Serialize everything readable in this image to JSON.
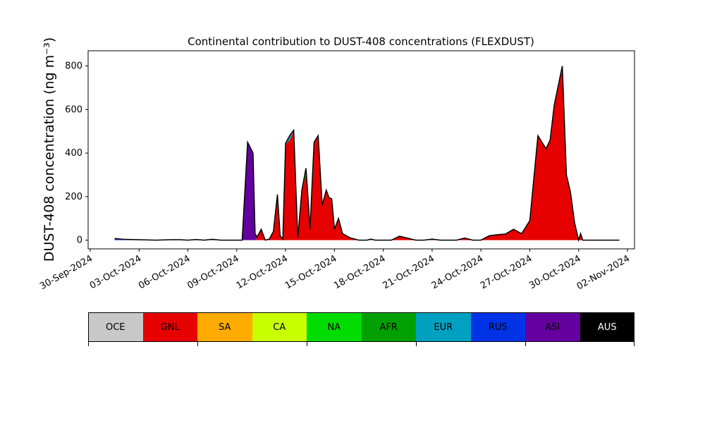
{
  "chart_data": {
    "type": "area",
    "stacked": true,
    "title": "Continental contribution to DUST-408 concentrations (FLEXDUST)",
    "ylabel": "DUST-408 concentration (ng m⁻³)",
    "xlabel": "",
    "ylim": [
      -40,
      870
    ],
    "yticks": [
      0,
      200,
      400,
      600,
      800
    ],
    "xlim": [
      "2024-09-30",
      "2024-11-02"
    ],
    "xtick_labels": [
      "30-Sep-2024",
      "03-Oct-2024",
      "06-Oct-2024",
      "09-Oct-2024",
      "12-Oct-2024",
      "15-Oct-2024",
      "18-Oct-2024",
      "21-Oct-2024",
      "24-Oct-2024",
      "27-Oct-2024",
      "30-Oct-2024",
      "02-Nov-2024"
    ],
    "grid": false,
    "x": [
      "2024-10-01T12:00",
      "2024-10-02T00:00",
      "2024-10-03T00:00",
      "2024-10-04T00:00",
      "2024-10-05T00:00",
      "2024-10-05T12:00",
      "2024-10-06T00:00",
      "2024-10-06T12:00",
      "2024-10-07T00:00",
      "2024-10-07T12:00",
      "2024-10-08T00:00",
      "2024-10-09T00:00",
      "2024-10-09T08:00",
      "2024-10-09T16:00",
      "2024-10-10T00:00",
      "2024-10-10T03:00",
      "2024-10-10T06:00",
      "2024-10-10T12:00",
      "2024-10-10T18:00",
      "2024-10-11T00:00",
      "2024-10-11T06:00",
      "2024-10-11T12:00",
      "2024-10-11T16:00",
      "2024-10-11T20:00",
      "2024-10-12T00:00",
      "2024-10-12T06:00",
      "2024-10-12T12:00",
      "2024-10-12T18:00",
      "2024-10-13T00:00",
      "2024-10-13T06:00",
      "2024-10-13T09:00",
      "2024-10-13T12:00",
      "2024-10-13T18:00",
      "2024-10-14T00:00",
      "2024-10-14T06:00",
      "2024-10-14T12:00",
      "2024-10-14T16:00",
      "2024-10-14T20:00",
      "2024-10-15T00:00",
      "2024-10-15T06:00",
      "2024-10-15T12:00",
      "2024-10-15T18:00",
      "2024-10-16T00:00",
      "2024-10-16T06:00",
      "2024-10-16T12:00",
      "2024-10-16T18:00",
      "2024-10-17T00:00",
      "2024-10-17T06:00",
      "2024-10-17T12:00",
      "2024-10-17T18:00",
      "2024-10-18T00:00",
      "2024-10-18T12:00",
      "2024-10-19T00:00",
      "2024-10-20T00:00",
      "2024-10-20T12:00",
      "2024-10-21T00:00",
      "2024-10-21T12:00",
      "2024-10-22T00:00",
      "2024-10-22T12:00",
      "2024-10-23T00:00",
      "2024-10-23T12:00",
      "2024-10-24T00:00",
      "2024-10-24T12:00",
      "2024-10-25T00:00",
      "2024-10-25T12:00",
      "2024-10-26T00:00",
      "2024-10-26T12:00",
      "2024-10-27T00:00",
      "2024-10-27T12:00",
      "2024-10-28T00:00",
      "2024-10-28T06:00",
      "2024-10-28T12:00",
      "2024-10-29T00:00",
      "2024-10-29T06:00",
      "2024-10-29T12:00",
      "2024-10-29T18:00",
      "2024-10-30T00:00",
      "2024-10-30T03:00",
      "2024-10-30T06:00",
      "2024-10-30T12:00",
      "2024-10-30T18:00",
      "2024-10-31T00:00",
      "2024-10-31T06:00",
      "2024-10-31T12:00",
      "2024-11-01T00:00",
      "2024-11-01T12:00"
    ],
    "series": [
      {
        "name": "OCE",
        "color": "#c8c8c8",
        "values": [
          0,
          0,
          0,
          0,
          0,
          0,
          0,
          0,
          0,
          0,
          0,
          0,
          0,
          0,
          0,
          0,
          0,
          0,
          0,
          0,
          0,
          0,
          0,
          0,
          0,
          0,
          0,
          0,
          0,
          0,
          0,
          0,
          0,
          0,
          0,
          0,
          0,
          0,
          0,
          0,
          0,
          0,
          0,
          0,
          0,
          0,
          0,
          0,
          0,
          0,
          0,
          0,
          0,
          0,
          0,
          0,
          0,
          0,
          0,
          0,
          0,
          0,
          0,
          0,
          0,
          0,
          0,
          0,
          0,
          0,
          0,
          0,
          0,
          0,
          0,
          0,
          0,
          0,
          0,
          0,
          0,
          0,
          0,
          0,
          0,
          0
        ]
      },
      {
        "name": "GNL",
        "color": "#e60000",
        "values": [
          0,
          0,
          0,
          0,
          2,
          0,
          0,
          0,
          0,
          0,
          0,
          0,
          0,
          0,
          0,
          0,
          10,
          50,
          0,
          5,
          40,
          210,
          20,
          5,
          440,
          460,
          500,
          10,
          230,
          300,
          200,
          50,
          450,
          480,
          160,
          230,
          195,
          190,
          50,
          100,
          30,
          20,
          10,
          5,
          0,
          0,
          0,
          5,
          0,
          0,
          0,
          0,
          18,
          0,
          0,
          5,
          0,
          0,
          0,
          10,
          0,
          0,
          20,
          25,
          28,
          50,
          30,
          90,
          480,
          420,
          460,
          620,
          800,
          300,
          220,
          80,
          0,
          30,
          0,
          0,
          0,
          0,
          0,
          0,
          0,
          0
        ]
      },
      {
        "name": "SA",
        "color": "#ffab00",
        "values": [
          0,
          0,
          0,
          0,
          0,
          0,
          0,
          0,
          0,
          0,
          0,
          0,
          0,
          0,
          0,
          0,
          0,
          0,
          0,
          0,
          0,
          0,
          0,
          0,
          0,
          0,
          0,
          0,
          0,
          0,
          0,
          0,
          0,
          0,
          0,
          0,
          0,
          0,
          0,
          0,
          0,
          0,
          0,
          0,
          0,
          0,
          0,
          0,
          0,
          0,
          0,
          0,
          0,
          0,
          0,
          0,
          0,
          0,
          0,
          0,
          0,
          0,
          0,
          0,
          0,
          0,
          0,
          0,
          0,
          0,
          0,
          0,
          0,
          0,
          0,
          0,
          0,
          0,
          0,
          0,
          0,
          0,
          0,
          0,
          0,
          0
        ]
      },
      {
        "name": "CA",
        "color": "#c8ff00",
        "values": [
          0,
          0,
          0,
          0,
          0,
          0,
          0,
          0,
          0,
          0,
          0,
          0,
          0,
          0,
          0,
          0,
          0,
          0,
          0,
          0,
          0,
          0,
          0,
          0,
          0,
          0,
          0,
          0,
          0,
          0,
          0,
          0,
          0,
          0,
          0,
          0,
          0,
          0,
          0,
          0,
          0,
          0,
          0,
          0,
          0,
          0,
          0,
          0,
          0,
          0,
          0,
          0,
          0,
          0,
          0,
          0,
          0,
          0,
          0,
          0,
          0,
          0,
          0,
          0,
          0,
          0,
          0,
          0,
          0,
          0,
          0,
          0,
          0,
          0,
          0,
          0,
          0,
          0,
          0,
          0,
          0,
          0,
          0,
          0,
          0,
          0
        ]
      },
      {
        "name": "NA",
        "color": "#00dc00",
        "values": [
          0,
          0,
          0,
          0,
          0,
          0,
          0,
          0,
          0,
          0,
          0,
          0,
          0,
          0,
          0,
          0,
          0,
          0,
          0,
          0,
          0,
          0,
          0,
          0,
          0,
          0,
          0,
          0,
          0,
          0,
          0,
          0,
          0,
          0,
          0,
          0,
          0,
          0,
          0,
          0,
          0,
          0,
          0,
          0,
          0,
          0,
          0,
          0,
          0,
          0,
          0,
          0,
          0,
          0,
          0,
          0,
          0,
          0,
          0,
          0,
          0,
          0,
          0,
          0,
          0,
          0,
          0,
          0,
          0,
          0,
          0,
          0,
          0,
          0,
          0,
          0,
          0,
          0,
          0,
          0,
          0,
          0,
          0,
          0,
          0,
          0
        ]
      },
      {
        "name": "AFR",
        "color": "#00a000",
        "values": [
          0,
          0,
          0,
          0,
          0,
          0,
          0,
          0,
          0,
          0,
          0,
          0,
          0,
          0,
          0,
          0,
          0,
          0,
          0,
          0,
          0,
          0,
          0,
          0,
          0,
          0,
          0,
          0,
          0,
          20,
          0,
          0,
          0,
          0,
          0,
          0,
          0,
          0,
          0,
          0,
          0,
          0,
          0,
          0,
          0,
          0,
          0,
          0,
          0,
          0,
          0,
          0,
          0,
          0,
          0,
          0,
          0,
          0,
          0,
          0,
          0,
          0,
          0,
          0,
          0,
          0,
          0,
          0,
          0,
          0,
          0,
          0,
          0,
          0,
          0,
          0,
          0,
          0,
          0,
          0,
          0,
          0,
          0,
          0,
          0,
          0
        ]
      },
      {
        "name": "EUR",
        "color": "#00a0c0",
        "values": [
          0,
          0,
          0,
          0,
          0,
          0,
          0,
          0,
          0,
          0,
          0,
          0,
          0,
          0,
          0,
          0,
          0,
          0,
          0,
          0,
          0,
          0,
          0,
          0,
          5,
          20,
          5,
          0,
          0,
          10,
          0,
          0,
          0,
          0,
          0,
          0,
          0,
          0,
          0,
          0,
          0,
          0,
          0,
          0,
          0,
          0,
          0,
          0,
          0,
          0,
          0,
          0,
          0,
          0,
          0,
          0,
          0,
          0,
          0,
          0,
          0,
          0,
          0,
          0,
          0,
          0,
          0,
          0,
          0,
          0,
          0,
          0,
          0,
          0,
          0,
          0,
          0,
          0,
          0,
          0,
          0,
          0,
          0,
          0,
          0,
          0
        ]
      },
      {
        "name": "RUS",
        "color": "#0032e6",
        "values": [
          4,
          2,
          0,
          0,
          0,
          0,
          0,
          0,
          0,
          0,
          0,
          0,
          0,
          0,
          0,
          0,
          0,
          0,
          0,
          0,
          0,
          0,
          0,
          0,
          0,
          0,
          0,
          0,
          0,
          0,
          0,
          0,
          0,
          0,
          0,
          0,
          0,
          0,
          0,
          0,
          0,
          0,
          0,
          0,
          0,
          0,
          0,
          0,
          0,
          0,
          0,
          0,
          0,
          0,
          0,
          0,
          0,
          0,
          0,
          0,
          0,
          0,
          0,
          0,
          0,
          0,
          0,
          0,
          0,
          0,
          0,
          0,
          0,
          0,
          0,
          0,
          0,
          0,
          0,
          0,
          0,
          0,
          0,
          0,
          0,
          0
        ]
      },
      {
        "name": "ASI",
        "color": "#6400a0",
        "values": [
          4,
          2,
          2,
          0,
          0,
          2,
          0,
          3,
          0,
          4,
          0,
          0,
          0,
          450,
          400,
          30,
          5,
          0,
          0,
          0,
          0,
          0,
          0,
          0,
          0,
          0,
          0,
          0,
          0,
          0,
          0,
          0,
          0,
          0,
          0,
          0,
          0,
          0,
          0,
          0,
          0,
          0,
          0,
          0,
          0,
          0,
          0,
          0,
          0,
          0,
          0,
          0,
          0,
          0,
          0,
          0,
          0,
          0,
          0,
          0,
          0,
          0,
          0,
          0,
          0,
          0,
          0,
          0,
          0,
          0,
          0,
          0,
          0,
          0,
          0,
          0,
          0,
          0,
          0,
          0,
          0,
          0,
          0,
          0,
          0,
          0
        ]
      },
      {
        "name": "AUS",
        "color": "#000000",
        "values": [
          0,
          0,
          0,
          0,
          0,
          0,
          0,
          0,
          0,
          0,
          0,
          0,
          0,
          0,
          0,
          0,
          0,
          0,
          0,
          0,
          0,
          0,
          0,
          0,
          0,
          0,
          0,
          0,
          0,
          0,
          0,
          0,
          0,
          0,
          0,
          0,
          0,
          0,
          0,
          0,
          0,
          0,
          0,
          0,
          0,
          0,
          0,
          0,
          0,
          0,
          0,
          0,
          0,
          0,
          0,
          0,
          0,
          0,
          0,
          0,
          0,
          0,
          0,
          0,
          0,
          0,
          0,
          0,
          0,
          0,
          0,
          0,
          0,
          0,
          0,
          0,
          0,
          0,
          0,
          0,
          0,
          0,
          0,
          0,
          0,
          0
        ]
      }
    ],
    "total_line_color": "#000000"
  },
  "legend": {
    "items": [
      {
        "label": "OCE",
        "color": "#c8c8c8",
        "text_color": "#000000"
      },
      {
        "label": "GNL",
        "color": "#e60000",
        "text_color": "#000000"
      },
      {
        "label": "SA",
        "color": "#ffab00",
        "text_color": "#000000"
      },
      {
        "label": "CA",
        "color": "#c8ff00",
        "text_color": "#000000"
      },
      {
        "label": "NA",
        "color": "#00dc00",
        "text_color": "#000000"
      },
      {
        "label": "AFR",
        "color": "#00a000",
        "text_color": "#000000"
      },
      {
        "label": "EUR",
        "color": "#00a0c0",
        "text_color": "#000000"
      },
      {
        "label": "RUS",
        "color": "#0032e6",
        "text_color": "#000000"
      },
      {
        "label": "ASI",
        "color": "#6400a0",
        "text_color": "#000000"
      },
      {
        "label": "AUS",
        "color": "#000000",
        "text_color": "#ffffff"
      }
    ]
  }
}
